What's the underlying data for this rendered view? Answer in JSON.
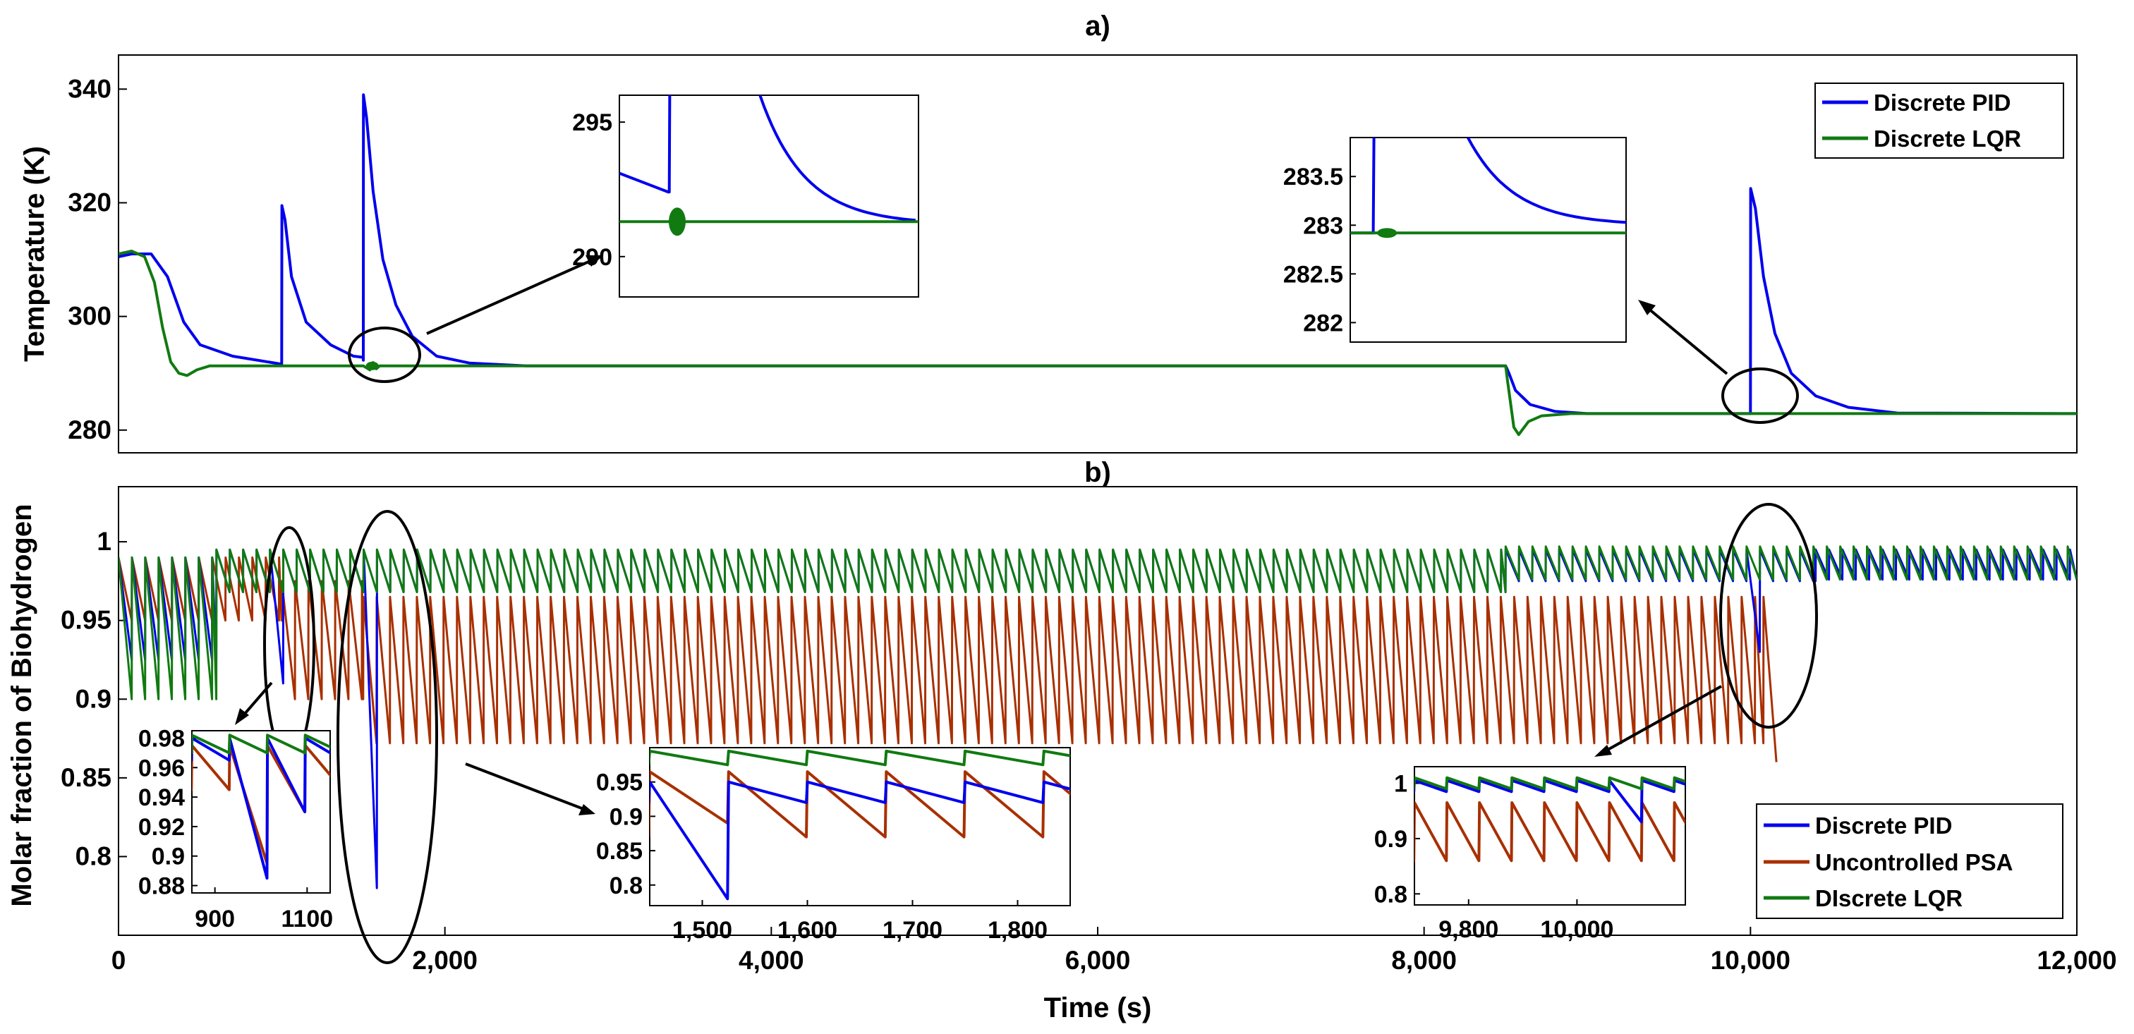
{
  "colors": {
    "pid": "#0000ee",
    "lqr": "#117a11",
    "psa": "#a83000",
    "axis": "#000000",
    "background": "#ffffff"
  },
  "chart_data": [
    {
      "panel": "a",
      "type": "line",
      "title": "a)",
      "xlabel": "",
      "ylabel": "Temperature (K)",
      "xlim": [
        0,
        12000
      ],
      "ylim": [
        276,
        346
      ],
      "yticks": [
        280,
        300,
        320,
        340
      ],
      "ytick_labels": [
        "280",
        "300",
        "320",
        "340"
      ],
      "legend_position": "top-right",
      "legend": [
        "Discrete PID",
        "Discrete LQR"
      ],
      "series": [
        {
          "name": "Discrete PID",
          "color_key": "pid",
          "points": [
            [
              0,
              310.5
            ],
            [
              80,
              311
            ],
            [
              200,
              311
            ],
            [
              300,
              307
            ],
            [
              400,
              299
            ],
            [
              500,
              295
            ],
            [
              700,
              293
            ],
            [
              1000,
              291.6
            ],
            [
              1001,
              319.5
            ],
            [
              1020,
              317
            ],
            [
              1060,
              307
            ],
            [
              1150,
              299
            ],
            [
              1300,
              295
            ],
            [
              1440,
              293
            ],
            [
              1499,
              292.8
            ],
            [
              1500,
              292.3
            ],
            [
              1501,
              339
            ],
            [
              1520,
              335
            ],
            [
              1560,
              322
            ],
            [
              1620,
              310
            ],
            [
              1700,
              302
            ],
            [
              1800,
              296.5
            ],
            [
              1950,
              293
            ],
            [
              2150,
              291.8
            ],
            [
              2500,
              291.3
            ],
            [
              8500,
              291.3
            ],
            [
              8520,
              290
            ],
            [
              8560,
              287
            ],
            [
              8650,
              284.5
            ],
            [
              8800,
              283.3
            ],
            [
              9000,
              282.9
            ],
            [
              10000,
              282.9
            ],
            [
              10001,
              322.5
            ],
            [
              10030,
              319
            ],
            [
              10080,
              307
            ],
            [
              10150,
              297
            ],
            [
              10250,
              290
            ],
            [
              10400,
              286
            ],
            [
              10600,
              284
            ],
            [
              10900,
              283
            ],
            [
              12000,
              282.9
            ]
          ]
        },
        {
          "name": "Discrete LQR",
          "color_key": "lqr",
          "points": [
            [
              0,
              311
            ],
            [
              80,
              311.5
            ],
            [
              160,
              310.5
            ],
            [
              220,
              306
            ],
            [
              270,
              298
            ],
            [
              320,
              292
            ],
            [
              370,
              290
            ],
            [
              420,
              289.6
            ],
            [
              480,
              290.6
            ],
            [
              560,
              291.3
            ],
            [
              1500,
              291.3
            ],
            [
              1540,
              290.6
            ],
            [
              1560,
              291.9
            ],
            [
              1580,
              290.8
            ],
            [
              1600,
              291.3
            ],
            [
              8500,
              291.3
            ],
            [
              8510,
              289
            ],
            [
              8550,
              280.5
            ],
            [
              8580,
              279.2
            ],
            [
              8640,
              281.5
            ],
            [
              8720,
              282.5
            ],
            [
              8900,
              282.9
            ],
            [
              12000,
              282.9
            ]
          ]
        }
      ],
      "insets": [
        {
          "name": "inset-a-left",
          "xlim": [
            1450,
            1750
          ],
          "ylim": [
            288.5,
            296
          ],
          "yticks": [
            290,
            295
          ],
          "ytick_labels": [
            "290",
            "295"
          ]
        },
        {
          "name": "inset-a-right",
          "xlim": [
            9950,
            10250
          ],
          "ylim": [
            281.8,
            283.9
          ],
          "yticks": [
            282,
            282.5,
            283,
            283.5
          ],
          "ytick_labels": [
            "282",
            "282.5",
            "283",
            "283.5"
          ]
        }
      ]
    },
    {
      "panel": "b",
      "type": "line",
      "title": "b)",
      "xlabel": "Time (s)",
      "ylabel": "Molar fraction of Biohydrogen",
      "xlim": [
        0,
        12000
      ],
      "ylim": [
        0.75,
        1.035
      ],
      "xticks": [
        0,
        2000,
        4000,
        6000,
        8000,
        10000,
        12000
      ],
      "xtick_labels": [
        "0",
        "2,000",
        "4,000",
        "6,000",
        "8,000",
        "10,000",
        "12,000"
      ],
      "yticks": [
        0.8,
        0.85,
        0.9,
        0.95,
        1.0
      ],
      "ytick_labels": [
        "0.8",
        "0.85",
        "0.9",
        "0.95",
        "1"
      ],
      "legend_position": "bottom-right",
      "legend": [
        "Discrete PID",
        "Uncontrolled PSA",
        "DIscrete LQR"
      ],
      "cycle_period_s": 82,
      "series": [
        {
          "name": "Uncontrolled PSA",
          "color_key": "psa",
          "segments": [
            {
              "x_start": 0,
              "x_end": 1000,
              "peak": 0.99,
              "trough": 0.95
            },
            {
              "x_start": 1000,
              "x_end": 1500,
              "peak": 0.975,
              "trough": 0.9
            },
            {
              "x_start": 1500,
              "x_end": 10080,
              "peak": 0.965,
              "trough": 0.872
            },
            {
              "x_start": 10080,
              "x_end": 10160,
              "peak": 0.965,
              "trough": 0.86
            }
          ]
        },
        {
          "name": "Discrete PID",
          "color_key": "pid",
          "segments": [
            {
              "x_start": 0,
              "x_end": 600,
              "peak": 0.99,
              "trough": 0.925
            },
            {
              "x_start": 600,
              "x_end": 8500,
              "peak": 0.995,
              "trough": 0.968
            },
            {
              "x_start": 8500,
              "x_end": 10400,
              "peak": 0.995,
              "trough": 0.975
            },
            {
              "x_start": 10400,
              "x_end": 12000,
              "peak": 0.995,
              "trough": 0.976
            }
          ],
          "dips": [
            [
              1000,
              0.91
            ],
            [
              1520,
              0.78
            ],
            [
              10010,
              0.93
            ]
          ]
        },
        {
          "name": "DIscrete LQR",
          "color_key": "lqr",
          "segments": [
            {
              "x_start": 0,
              "x_end": 600,
              "peak": 0.99,
              "trough": 0.9
            },
            {
              "x_start": 600,
              "x_end": 8500,
              "peak": 0.995,
              "trough": 0.968
            },
            {
              "x_start": 8500,
              "x_end": 12000,
              "peak": 0.997,
              "trough": 0.976
            }
          ]
        }
      ],
      "insets": [
        {
          "name": "inset-b-1",
          "xlim": [
            850,
            1150
          ],
          "ylim": [
            0.875,
            0.985
          ],
          "xticks": [
            900,
            1100
          ],
          "xtick_labels": [
            "900",
            "1100"
          ],
          "yticks": [
            0.88,
            0.9,
            0.92,
            0.94,
            0.96,
            0.98
          ],
          "ytick_labels": [
            "0.88",
            "0.9",
            "0.92",
            "0.94",
            "0.96",
            "0.98"
          ]
        },
        {
          "name": "inset-b-2",
          "xlim": [
            1450,
            1850
          ],
          "ylim": [
            0.77,
            1.0
          ],
          "xticks": [
            1500,
            1600,
            1700,
            1800
          ],
          "xtick_labels": [
            "1,500",
            "1,600",
            "1,700",
            "1,800"
          ],
          "yticks": [
            0.8,
            0.85,
            0.9,
            0.95
          ],
          "ytick_labels": [
            "0.8",
            "0.85",
            "0.9",
            "0.95"
          ]
        },
        {
          "name": "inset-b-3",
          "xlim": [
            9700,
            10200
          ],
          "ylim": [
            0.78,
            1.03
          ],
          "xticks": [
            9800,
            10000
          ],
          "xtick_labels": [
            "9,800",
            "10,000"
          ],
          "yticks": [
            0.8,
            0.9,
            1.0
          ],
          "ytick_labels": [
            "0.8",
            "0.9",
            "1"
          ]
        }
      ]
    }
  ]
}
